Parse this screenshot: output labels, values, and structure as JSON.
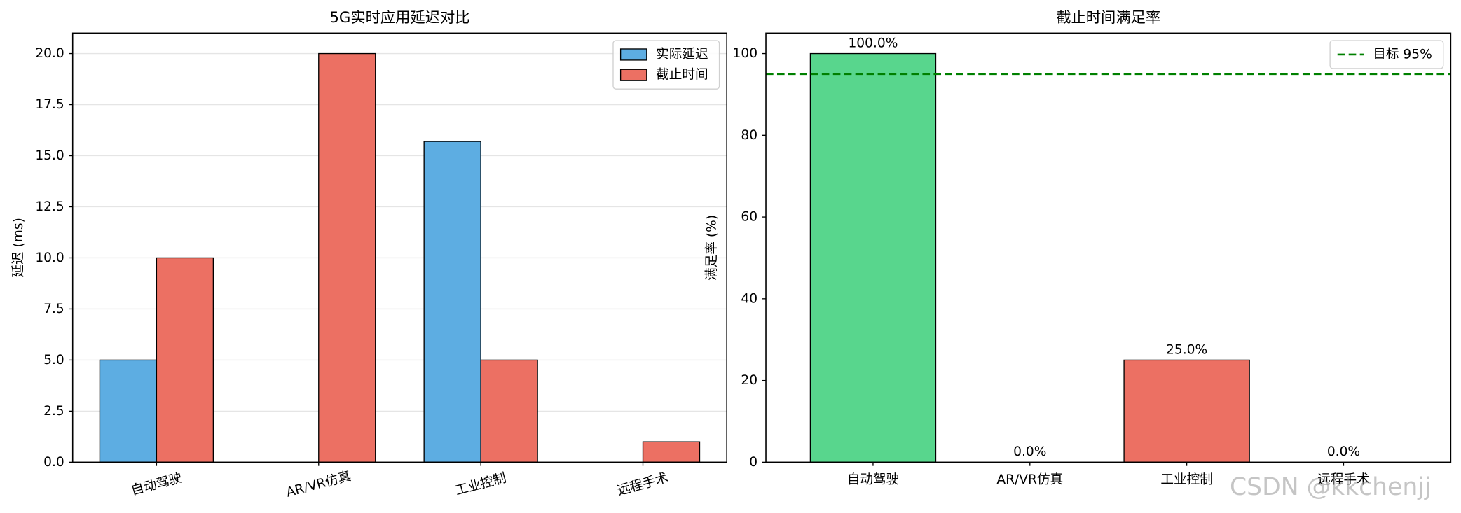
{
  "chart_data": [
    {
      "type": "bar",
      "title": "5G实时应用延迟对比",
      "ylabel": "延迟 (ms)",
      "categories": [
        "自动驾驶",
        "AR/VR仿真",
        "工业控制",
        "远程手术"
      ],
      "series": [
        {
          "name": "实际延迟",
          "color": "#5dade2",
          "values": [
            5,
            0,
            15.7,
            0
          ]
        },
        {
          "name": "截止时间",
          "color": "#ec7063",
          "values": [
            10,
            20,
            5,
            1
          ]
        }
      ],
      "ylim": [
        0,
        21
      ],
      "yticks": [
        {
          "value": 0,
          "label": "0.0"
        },
        {
          "value": 2.5,
          "label": "2.5"
        },
        {
          "value": 5,
          "label": "5.0"
        },
        {
          "value": 7.5,
          "label": "7.5"
        },
        {
          "value": 10,
          "label": "10.0"
        },
        {
          "value": 12.5,
          "label": "12.5"
        },
        {
          "value": 15,
          "label": "15.0"
        },
        {
          "value": 17.5,
          "label": "17.5"
        },
        {
          "value": 20,
          "label": "20.0"
        }
      ],
      "grid": true,
      "legend": "upper right"
    },
    {
      "type": "bar",
      "title": "截止时间满足率",
      "ylabel": "满足率 (%)",
      "categories": [
        "自动驾驶",
        "AR/VR仿真",
        "工业控制",
        "远程手术"
      ],
      "values": [
        100,
        0,
        25,
        0
      ],
      "value_labels": [
        "100.0%",
        "0.0%",
        "25.0%",
        "0.0%"
      ],
      "colors": [
        "#58d68d",
        "#ec7063",
        "#ec7063",
        "#ec7063"
      ],
      "ylim": [
        0,
        105
      ],
      "yticks": [
        0,
        20,
        40,
        60,
        80,
        100
      ],
      "grid": false,
      "legend": "upper right",
      "hlines": [
        {
          "value": 95,
          "name": "目标 95%",
          "color": "#008000"
        }
      ],
      "watermark": "CSDN @kkchenjj"
    }
  ]
}
